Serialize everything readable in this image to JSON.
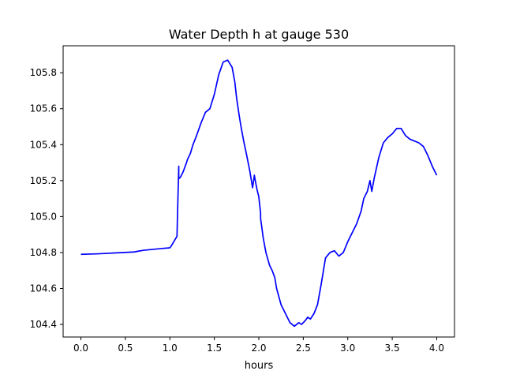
{
  "chart_data": {
    "type": "line",
    "title": "Water Depth h at gauge 530",
    "xlabel": "hours",
    "ylabel": "",
    "xlim": [
      -0.2,
      4.2
    ],
    "ylim": [
      104.33,
      105.95
    ],
    "xticks": [
      0.0,
      0.5,
      1.0,
      1.5,
      2.0,
      2.5,
      3.0,
      3.5,
      4.0
    ],
    "xtick_labels": [
      "0.0",
      "0.5",
      "1.0",
      "1.5",
      "2.0",
      "2.5",
      "3.0",
      "3.5",
      "4.0"
    ],
    "yticks": [
      104.4,
      104.6,
      104.8,
      105.0,
      105.2,
      105.4,
      105.6,
      105.8
    ],
    "ytick_labels": [
      "104.4",
      "104.6",
      "104.8",
      "105.0",
      "105.2",
      "105.4",
      "105.6",
      "105.8"
    ],
    "grid": false,
    "legend": "none",
    "series": [
      {
        "color": "#0000ff",
        "x": [
          0.0,
          0.2,
          0.4,
          0.6,
          0.65,
          0.7,
          0.8,
          0.9,
          1.0,
          1.02,
          1.08,
          1.1,
          1.1,
          1.12,
          1.15,
          1.18,
          1.2,
          1.23,
          1.26,
          1.3,
          1.35,
          1.4,
          1.45,
          1.5,
          1.55,
          1.6,
          1.65,
          1.7,
          1.73,
          1.75,
          1.78,
          1.8,
          1.83,
          1.86,
          1.9,
          1.93,
          1.95,
          1.96,
          1.98,
          2.0,
          2.02,
          2.02,
          2.05,
          2.08,
          2.12,
          2.15,
          2.18,
          2.2,
          2.25,
          2.3,
          2.35,
          2.4,
          2.45,
          2.48,
          2.52,
          2.55,
          2.58,
          2.62,
          2.66,
          2.7,
          2.75,
          2.8,
          2.85,
          2.9,
          2.95,
          3.0,
          3.05,
          3.1,
          3.15,
          3.18,
          3.22,
          3.25,
          3.27,
          3.3,
          3.35,
          3.4,
          3.45,
          3.5,
          3.55,
          3.6,
          3.65,
          3.7,
          3.75,
          3.8,
          3.85,
          3.9,
          3.95,
          4.0
        ],
        "y": [
          104.79,
          104.793,
          104.798,
          104.803,
          104.808,
          104.812,
          104.817,
          104.822,
          104.826,
          104.84,
          104.89,
          105.28,
          105.21,
          105.22,
          105.25,
          105.29,
          105.32,
          105.35,
          105.4,
          105.45,
          105.52,
          105.58,
          105.6,
          105.68,
          105.79,
          105.86,
          105.87,
          105.83,
          105.75,
          105.66,
          105.56,
          105.5,
          105.42,
          105.35,
          105.25,
          105.16,
          105.23,
          105.2,
          105.15,
          105.11,
          105.02,
          104.99,
          104.88,
          104.8,
          104.73,
          104.7,
          104.66,
          104.6,
          104.51,
          104.46,
          104.41,
          104.39,
          104.41,
          104.4,
          104.42,
          104.44,
          104.43,
          104.46,
          104.51,
          104.62,
          104.77,
          104.8,
          104.81,
          104.78,
          104.8,
          104.86,
          104.91,
          104.96,
          105.03,
          105.1,
          105.14,
          105.2,
          105.14,
          105.22,
          105.33,
          105.41,
          105.44,
          105.46,
          105.49,
          105.49,
          105.45,
          105.43,
          105.42,
          105.41,
          105.39,
          105.34,
          105.28,
          105.23
        ]
      }
    ]
  }
}
